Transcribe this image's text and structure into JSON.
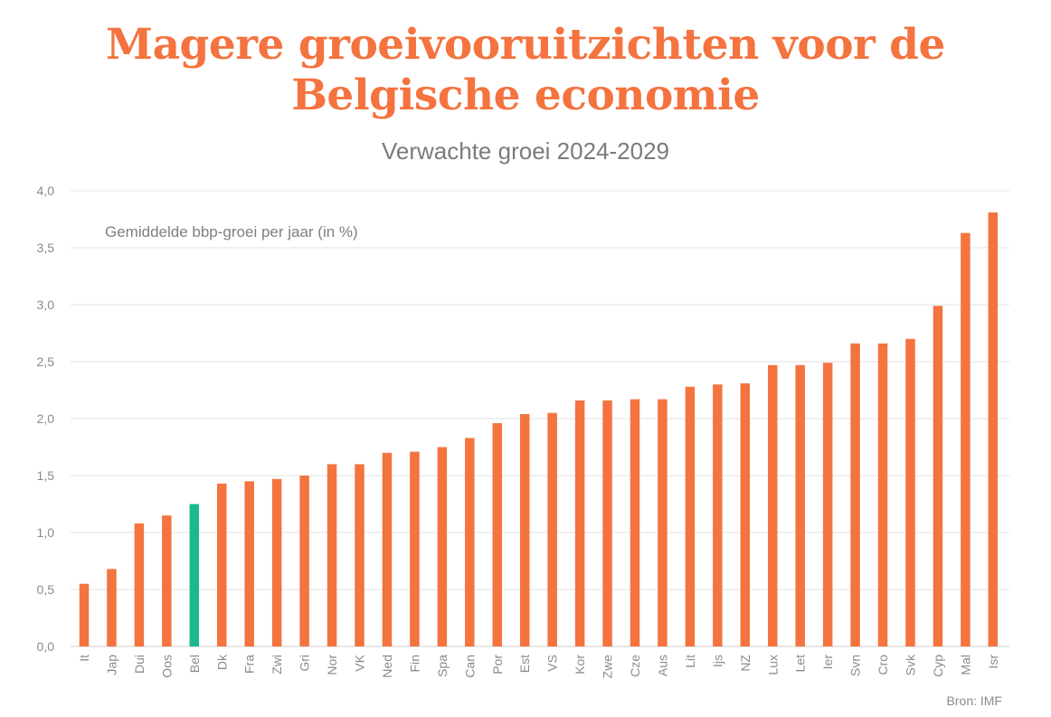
{
  "header": {
    "title_line1": "Magere groeivooruitzichten voor de",
    "title_line2": "Belgische economie",
    "subtitle": "Verwachte groei 2024-2029"
  },
  "footer": {
    "source": "Bron: IMF"
  },
  "colors": {
    "bar": "#f4733f",
    "highlight": "#1ab98c",
    "title": "#f4733f",
    "grid": "#e3e3e3",
    "text": "#8a8a8a"
  },
  "chart_data": {
    "type": "bar",
    "title": "Magere groeivooruitzichten voor de Belgische economie",
    "subtitle": "Verwachte groei 2024-2029",
    "annotation": "Gemiddelde bbp-groei per jaar (in %)",
    "categories": [
      "It",
      "Jap",
      "Dui",
      "Oos",
      "Bel",
      "Dk",
      "Fra",
      "Zwi",
      "Gri",
      "Nor",
      "VK",
      "Ned",
      "Fin",
      "Spa",
      "Can",
      "Por",
      "Est",
      "VS",
      "Kor",
      "Zwe",
      "Cze",
      "Aus",
      "Lit",
      "Ijs",
      "NZ",
      "Lux",
      "Let",
      "Ier",
      "Svn",
      "Cro",
      "Svk",
      "Cyp",
      "Mal",
      "Isr"
    ],
    "values": [
      0.55,
      0.68,
      1.08,
      1.15,
      1.25,
      1.43,
      1.45,
      1.47,
      1.5,
      1.6,
      1.6,
      1.7,
      1.71,
      1.75,
      1.83,
      1.96,
      2.04,
      2.05,
      2.16,
      2.16,
      2.17,
      2.17,
      2.28,
      2.3,
      2.31,
      2.47,
      2.47,
      2.49,
      2.66,
      2.66,
      2.7,
      2.99,
      3.63,
      3.81
    ],
    "highlight": "Bel",
    "ylim": [
      0,
      4.0
    ],
    "yticks": [
      "0,0",
      "0,5",
      "1,0",
      "1,5",
      "2,0",
      "2,5",
      "3,0",
      "3,5",
      "4,0"
    ],
    "grid": true,
    "source": "Bron: IMF"
  }
}
